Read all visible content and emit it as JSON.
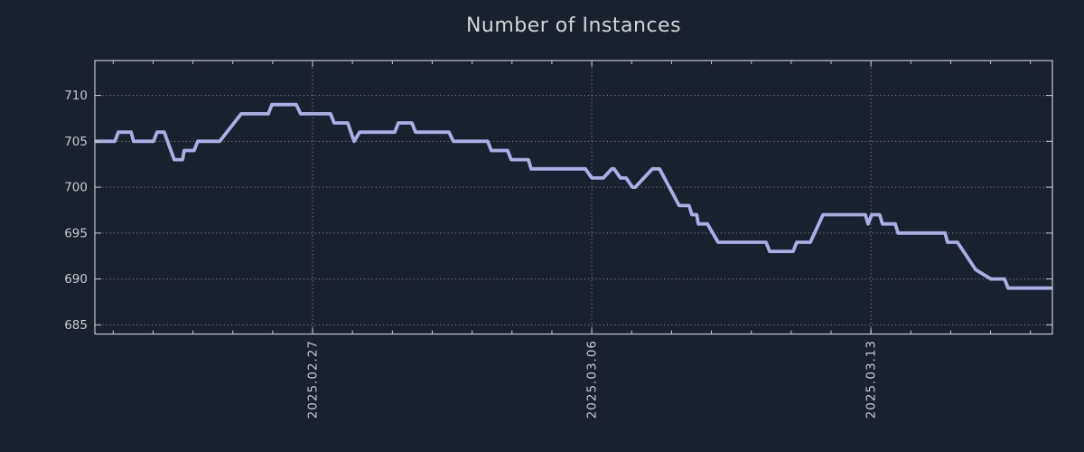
{
  "title": "Number of Instances",
  "colors": {
    "background": "#1a212e",
    "line": "#a9aee8",
    "grid": "#9ba1a9",
    "axis": "#c6c9ce",
    "tick_label": "#c7cacf",
    "title": "#d3d5d9"
  },
  "chart_data": {
    "type": "line",
    "title": "Number of Instances",
    "xlabel": "",
    "ylabel": "",
    "x_unit": "days since left edge (left edge ≈ 2025.02.21 12:00)",
    "xlim": [
      0,
      24.01
    ],
    "ylim": [
      684.0,
      713.8
    ],
    "y_ticks": [
      685,
      690,
      695,
      700,
      705,
      710
    ],
    "x_major_ticks": [
      {
        "pos": 5.46,
        "label": "2025.02.27"
      },
      {
        "pos": 12.46,
        "label": "2025.03.06"
      },
      {
        "pos": 19.46,
        "label": "2025.03.13"
      }
    ],
    "x_minor_start": 0.46,
    "x_minor_step": 1,
    "grid": "dotted",
    "legend": "none",
    "series": [
      {
        "name": "instances",
        "points": [
          [
            0.0,
            705
          ],
          [
            0.5,
            705
          ],
          [
            0.59,
            706
          ],
          [
            0.91,
            706
          ],
          [
            0.97,
            705
          ],
          [
            1.47,
            705
          ],
          [
            1.56,
            706
          ],
          [
            1.74,
            706
          ],
          [
            1.99,
            703
          ],
          [
            2.2,
            703
          ],
          [
            2.24,
            704
          ],
          [
            2.49,
            704
          ],
          [
            2.58,
            705
          ],
          [
            3.13,
            705
          ],
          [
            3.67,
            708
          ],
          [
            4.35,
            708
          ],
          [
            4.44,
            709
          ],
          [
            5.05,
            709
          ],
          [
            5.16,
            708
          ],
          [
            5.91,
            708
          ],
          [
            6.0,
            707
          ],
          [
            6.34,
            707
          ],
          [
            6.5,
            705
          ],
          [
            6.64,
            706
          ],
          [
            7.52,
            706
          ],
          [
            7.61,
            707
          ],
          [
            7.95,
            707
          ],
          [
            8.04,
            706
          ],
          [
            8.88,
            706
          ],
          [
            8.99,
            705
          ],
          [
            9.85,
            705
          ],
          [
            9.94,
            704
          ],
          [
            10.35,
            704
          ],
          [
            10.44,
            703
          ],
          [
            10.87,
            703
          ],
          [
            10.94,
            702
          ],
          [
            12.3,
            702
          ],
          [
            12.46,
            701
          ],
          [
            12.75,
            701
          ],
          [
            12.96,
            702
          ],
          [
            13.02,
            702
          ],
          [
            13.18,
            701
          ],
          [
            13.32,
            701
          ],
          [
            13.48,
            700
          ],
          [
            13.55,
            700
          ],
          [
            13.98,
            702
          ],
          [
            14.16,
            702
          ],
          [
            14.65,
            698
          ],
          [
            14.9,
            698
          ],
          [
            14.97,
            697
          ],
          [
            15.09,
            697
          ],
          [
            15.13,
            696
          ],
          [
            15.36,
            696
          ],
          [
            15.63,
            694
          ],
          [
            16.83,
            694
          ],
          [
            16.92,
            693
          ],
          [
            17.51,
            693
          ],
          [
            17.6,
            694
          ],
          [
            17.94,
            694
          ],
          [
            18.26,
            697
          ],
          [
            19.32,
            697
          ],
          [
            19.39,
            696
          ],
          [
            19.48,
            697
          ],
          [
            19.68,
            697
          ],
          [
            19.75,
            696
          ],
          [
            20.07,
            696
          ],
          [
            20.14,
            695
          ],
          [
            21.32,
            695
          ],
          [
            21.38,
            694
          ],
          [
            21.63,
            694
          ],
          [
            22.09,
            691
          ],
          [
            22.47,
            690
          ],
          [
            22.81,
            690
          ],
          [
            22.9,
            689
          ],
          [
            24.01,
            689
          ]
        ]
      }
    ]
  }
}
